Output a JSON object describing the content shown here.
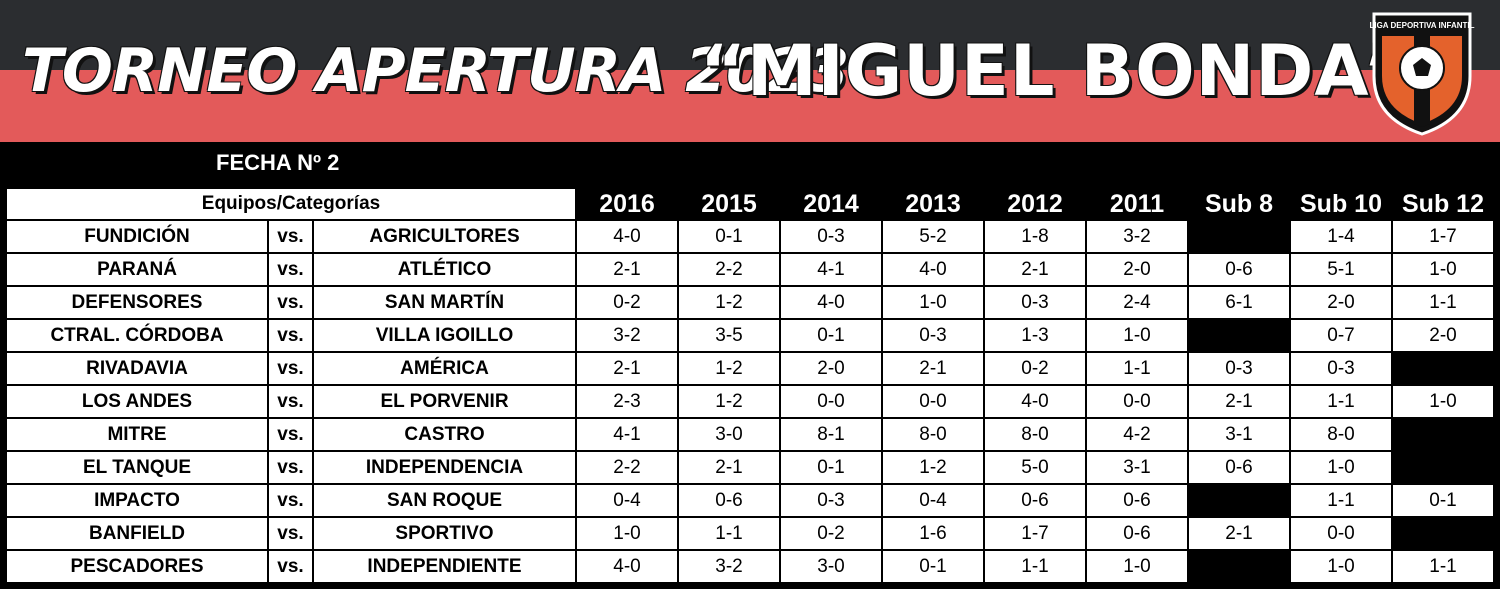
{
  "banner": {
    "title_left": "TORNEO APERTURA 2023",
    "title_right": "“MIGUEL BONDA”",
    "logo_text": "LIGA DEPORTIVA INFANTIL",
    "colors": {
      "dark": "#2b2d30",
      "red": "#e35a5a",
      "logo_orange": "#e4622c"
    }
  },
  "fecha": "FECHA Nº 2",
  "table": {
    "header_label": "Equipos/Categorías",
    "categories": [
      "2016",
      "2015",
      "2014",
      "2013",
      "2012",
      "2011",
      "Sub 8",
      "Sub 10",
      "Sub 12"
    ],
    "rows": [
      {
        "home": "FUNDICIÓN",
        "vs": "vs.",
        "away": "AGRICULTORES",
        "scores": [
          "4-0",
          "0-1",
          "0-3",
          "5-2",
          "1-8",
          "3-2",
          "",
          "1-4",
          "1-7"
        ]
      },
      {
        "home": "PARANÁ",
        "vs": "vs.",
        "away": "ATLÉTICO",
        "scores": [
          "2-1",
          "2-2",
          "4-1",
          "4-0",
          "2-1",
          "2-0",
          "0-6",
          "5-1",
          "1-0"
        ]
      },
      {
        "home": "DEFENSORES",
        "vs": "vs.",
        "away": "SAN MARTÍN",
        "scores": [
          "0-2",
          "1-2",
          "4-0",
          "1-0",
          "0-3",
          "2-4",
          "6-1",
          "2-0",
          "1-1"
        ]
      },
      {
        "home": "CTRAL. CÓRDOBA",
        "vs": "vs.",
        "away": "VILLA IGOILLO",
        "scores": [
          "3-2",
          "3-5",
          "0-1",
          "0-3",
          "1-3",
          "1-0",
          "",
          "0-7",
          "2-0"
        ]
      },
      {
        "home": "RIVADAVIA",
        "vs": "vs.",
        "away": "AMÉRICA",
        "scores": [
          "2-1",
          "1-2",
          "2-0",
          "2-1",
          "0-2",
          "1-1",
          "0-3",
          "0-3",
          ""
        ]
      },
      {
        "home": "LOS ANDES",
        "vs": "vs.",
        "away": "EL PORVENIR",
        "scores": [
          "2-3",
          "1-2",
          "0-0",
          "0-0",
          "4-0",
          "0-0",
          "2-1",
          "1-1",
          "1-0"
        ]
      },
      {
        "home": "MITRE",
        "vs": "vs.",
        "away": "CASTRO",
        "scores": [
          "4-1",
          "3-0",
          "8-1",
          "8-0",
          "8-0",
          "4-2",
          "3-1",
          "8-0",
          ""
        ]
      },
      {
        "home": "EL TANQUE",
        "vs": "vs.",
        "away": "INDEPENDENCIA",
        "scores": [
          "2-2",
          "2-1",
          "0-1",
          "1-2",
          "5-0",
          "3-1",
          "0-6",
          "1-0",
          ""
        ]
      },
      {
        "home": "IMPACTO",
        "vs": "vs.",
        "away": "SAN ROQUE",
        "scores": [
          "0-4",
          "0-6",
          "0-3",
          "0-4",
          "0-6",
          "0-6",
          "",
          "1-1",
          "0-1"
        ]
      },
      {
        "home": "BANFIELD",
        "vs": "vs.",
        "away": "SPORTIVO",
        "scores": [
          "1-0",
          "1-1",
          "0-2",
          "1-6",
          "1-7",
          "0-6",
          "2-1",
          "0-0",
          ""
        ]
      },
      {
        "home": "PESCADORES",
        "vs": "vs.",
        "away": "INDEPENDIENTE",
        "scores": [
          "4-0",
          "3-2",
          "3-0",
          "0-1",
          "1-1",
          "1-0",
          "",
          "1-0",
          "1-1"
        ]
      }
    ]
  }
}
